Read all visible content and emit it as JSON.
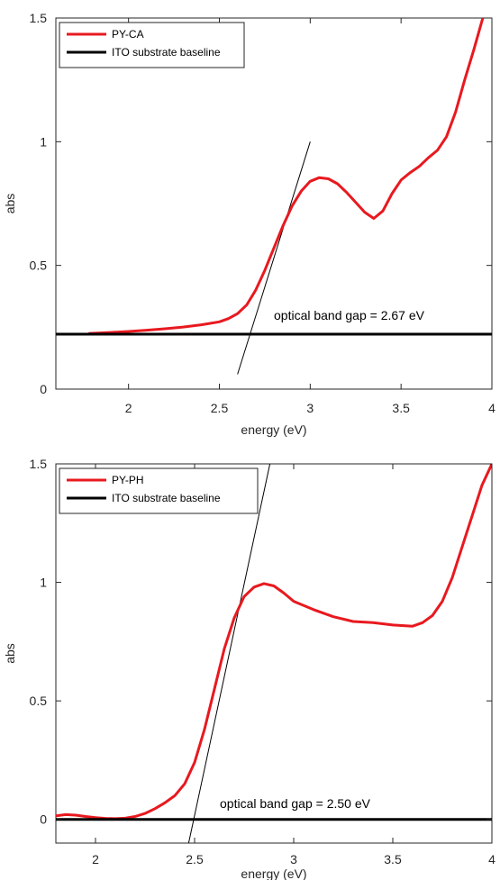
{
  "chart_data": [
    {
      "type": "line",
      "xlabel": "energy (eV)",
      "ylabel": "abs",
      "xlim": [
        1.6,
        4.0
      ],
      "ylim": [
        0,
        1.5
      ],
      "xticks": [
        {
          "value": 2,
          "label": "2"
        },
        {
          "value": 2.5,
          "label": "2.5"
        },
        {
          "value": 3,
          "label": "3"
        },
        {
          "value": 3.5,
          "label": "3.5"
        },
        {
          "value": 4,
          "label": "4"
        }
      ],
      "yticks": [
        {
          "value": 0,
          "label": "0"
        },
        {
          "value": 0.5,
          "label": "0.5"
        },
        {
          "value": 1,
          "label": "1"
        },
        {
          "value": 1.5,
          "label": "1.5"
        }
      ],
      "legend_position": "top-left",
      "grid": false,
      "series": [
        {
          "name": "PY-CA",
          "color": "#e8191f",
          "x": [
            1.78,
            1.9,
            2.0,
            2.1,
            2.2,
            2.3,
            2.4,
            2.5,
            2.55,
            2.6,
            2.65,
            2.7,
            2.75,
            2.8,
            2.85,
            2.9,
            2.95,
            3.0,
            3.05,
            3.1,
            3.15,
            3.2,
            3.25,
            3.3,
            3.35,
            3.4,
            3.45,
            3.5,
            3.55,
            3.6,
            3.65,
            3.7,
            3.75,
            3.8,
            3.85,
            3.9,
            3.95
          ],
          "y": [
            0.225,
            0.229,
            0.233,
            0.238,
            0.244,
            0.251,
            0.26,
            0.272,
            0.285,
            0.305,
            0.34,
            0.4,
            0.48,
            0.57,
            0.66,
            0.74,
            0.8,
            0.84,
            0.855,
            0.85,
            0.83,
            0.795,
            0.755,
            0.715,
            0.69,
            0.72,
            0.79,
            0.845,
            0.875,
            0.9,
            0.935,
            0.965,
            1.02,
            1.12,
            1.25,
            1.37,
            1.5
          ]
        },
        {
          "name": "ITO substrate baseline",
          "color": "#000000",
          "x": [
            1.6,
            4.0
          ],
          "y": [
            0.222,
            0.222
          ]
        }
      ],
      "tangent": {
        "x": [
          2.6,
          3.0
        ],
        "y": [
          0.06,
          1.0
        ]
      },
      "annotation": "optical band gap = 2.67 eV"
    },
    {
      "type": "line",
      "xlabel": "energy (eV)",
      "ylabel": "abs",
      "xlim": [
        1.8,
        4.0
      ],
      "ylim": [
        -0.1,
        1.5
      ],
      "xticks": [
        {
          "value": 2,
          "label": "2"
        },
        {
          "value": 2.5,
          "label": "2.5"
        },
        {
          "value": 3,
          "label": "3"
        },
        {
          "value": 3.5,
          "label": "3.5"
        },
        {
          "value": 4,
          "label": "4"
        }
      ],
      "yticks": [
        {
          "value": 0,
          "label": "0"
        },
        {
          "value": 0.5,
          "label": "0.5"
        },
        {
          "value": 1,
          "label": "1"
        },
        {
          "value": 1.5,
          "label": "1.5"
        }
      ],
      "legend_position": "top-left",
      "grid": false,
      "series": [
        {
          "name": "PY-PH",
          "color": "#e8191f",
          "x": [
            1.8,
            1.85,
            1.9,
            1.95,
            2.0,
            2.05,
            2.1,
            2.15,
            2.2,
            2.25,
            2.3,
            2.35,
            2.4,
            2.45,
            2.5,
            2.55,
            2.6,
            2.65,
            2.7,
            2.75,
            2.8,
            2.85,
            2.9,
            2.95,
            3.0,
            3.1,
            3.2,
            3.3,
            3.4,
            3.5,
            3.6,
            3.65,
            3.7,
            3.75,
            3.8,
            3.85,
            3.9,
            3.95,
            4.0
          ],
          "y": [
            0.015,
            0.02,
            0.018,
            0.012,
            0.007,
            0.004,
            0.003,
            0.005,
            0.012,
            0.025,
            0.045,
            0.07,
            0.1,
            0.15,
            0.24,
            0.38,
            0.55,
            0.72,
            0.85,
            0.94,
            0.98,
            0.995,
            0.985,
            0.955,
            0.92,
            0.885,
            0.855,
            0.835,
            0.83,
            0.82,
            0.815,
            0.83,
            0.86,
            0.92,
            1.02,
            1.15,
            1.28,
            1.41,
            1.5
          ]
        },
        {
          "name": "ITO substrate baseline",
          "color": "#000000",
          "x": [
            1.8,
            4.0
          ],
          "y": [
            0.0,
            0.0
          ]
        }
      ],
      "tangent": {
        "x": [
          2.47,
          2.88
        ],
        "y": [
          -0.1,
          1.5
        ]
      },
      "annotation": "optical band gap = 2.50 eV"
    }
  ]
}
